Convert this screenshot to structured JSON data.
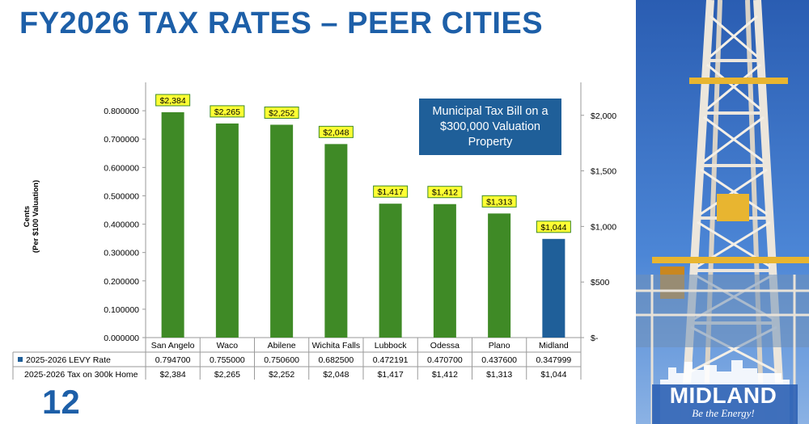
{
  "slide": {
    "title": "FY2026 TAX RATES – PEER CITIES",
    "page_number": "12"
  },
  "callout": {
    "text": "Municipal Tax Bill on a $300,000 Valuation Property"
  },
  "brand": {
    "name": "MIDLAND",
    "tagline": "Be the Energy!"
  },
  "photo": {
    "icon": "drilling-rig-photo",
    "sky_color": "#2f63b5",
    "structure_color": "#ece6dc",
    "accent_color": "#e8b530"
  },
  "chart_data": {
    "type": "bar",
    "ylabel": [
      "Cents",
      "(Per $100 Valuation)"
    ],
    "ylim": [
      0,
      0.9
    ],
    "y_ticks": [
      "0.000000",
      "0.100000",
      "0.200000",
      "0.300000",
      "0.400000",
      "0.500000",
      "0.600000",
      "0.700000",
      "0.800000"
    ],
    "y2_range": [
      0,
      2500
    ],
    "y2_ticks": [
      {
        "value": 0,
        "label": "$-"
      },
      {
        "value": 500,
        "label": "$500"
      },
      {
        "value": 1000,
        "label": "$1,000"
      },
      {
        "value": 1500,
        "label": "$1,500"
      },
      {
        "value": 2000,
        "label": "$2,000"
      }
    ],
    "categories": [
      "San Angelo",
      "Waco",
      "Abilene",
      "Wichita Falls",
      "Lubbock",
      "Odessa",
      "Plano",
      "Midland"
    ],
    "series": [
      {
        "name": "2025-2026 LEVY Rate",
        "values": [
          0.7947,
          0.755,
          0.7506,
          0.6825,
          0.472191,
          0.4707,
          0.4376,
          0.347999
        ],
        "value_labels": [
          "0.794700",
          "0.755000",
          "0.750600",
          "0.682500",
          "0.472191",
          "0.470700",
          "0.437600",
          "0.347999"
        ]
      },
      {
        "name": "2025-2026 Tax on 300k Home",
        "values": [
          2384,
          2265,
          2252,
          2048,
          1417,
          1412,
          1313,
          1044
        ],
        "value_labels": [
          "$2,384",
          "$2,265",
          "$2,252",
          "$2,048",
          "$1,417",
          "$1,412",
          "$1,313",
          "$1,044"
        ]
      }
    ],
    "colors": {
      "default_bar": "#3f8a26",
      "highlight_bar": "#1f5f99",
      "highlight_index": 7,
      "data_label_bg": "#ffff33",
      "data_label_border": "#3f8a26"
    },
    "grid": false,
    "legend_position": "table-below"
  }
}
